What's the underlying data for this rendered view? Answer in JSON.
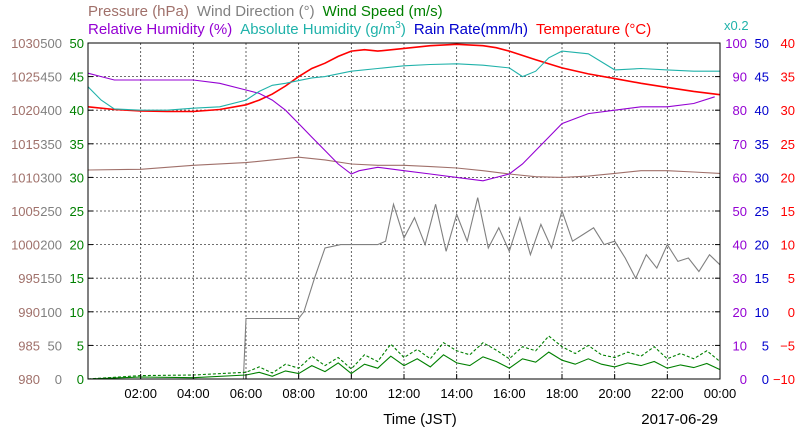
{
  "chart_data": {
    "type": "line",
    "title_row1": [
      {
        "text": "Pressure (hPa)",
        "color": "#a0706a"
      },
      {
        "text": "Wind Direction (°)",
        "color": "#808080"
      },
      {
        "text": "Wind Speed (m/s)",
        "color": "#008000"
      }
    ],
    "title_row2": [
      {
        "text": "Relative Humidity (%)",
        "color": "#9400d3"
      },
      {
        "text": "Absolute Humidity (g/m",
        "sup": "3",
        "tail": ")",
        "color": "#20b2aa"
      },
      {
        "text": "Rain Rate(mm/h)",
        "color": "#0000cd"
      },
      {
        "text": "Temperature (°C)",
        "color": "#ff0000"
      }
    ],
    "rain_scale_note": "x0.2",
    "xlabel": "Time (JST)",
    "date": "2017-06-29",
    "x_ticks": [
      "02:00",
      "04:00",
      "06:00",
      "08:00",
      "10:00",
      "12:00",
      "14:00",
      "16:00",
      "18:00",
      "20:00",
      "22:00",
      "00:00"
    ],
    "x_range_hours": [
      0,
      24
    ],
    "axes": {
      "pressure": {
        "color": "#a0706a",
        "range": [
          980,
          1030
        ],
        "ticks": [
          "980",
          "985",
          "990",
          "995",
          "1000",
          "1005",
          "1010",
          "1015",
          "1020",
          "1025",
          "1030"
        ]
      },
      "wind_direction": {
        "color": "#808080",
        "range": [
          0,
          500
        ],
        "ticks": [
          "0",
          "50",
          "100",
          "150",
          "200",
          "250",
          "300",
          "350",
          "400",
          "450",
          "500"
        ]
      },
      "wind_speed": {
        "color": "#008000",
        "range": [
          0,
          50
        ],
        "ticks": [
          "0",
          "5",
          "10",
          "15",
          "20",
          "25",
          "30",
          "35",
          "40",
          "45",
          "50"
        ]
      },
      "humidity": {
        "color": "#9400d3",
        "range": [
          0,
          100
        ],
        "ticks": [
          "0",
          "10",
          "20",
          "30",
          "40",
          "50",
          "60",
          "70",
          "80",
          "90",
          "100"
        ]
      },
      "rain_rate": {
        "color": "#0000cd",
        "range": [
          0,
          50
        ],
        "ticks": [
          "0",
          "5",
          "10",
          "15",
          "20",
          "25",
          "30",
          "35",
          "40",
          "45",
          "50"
        ]
      },
      "temperature": {
        "color": "#ff0000",
        "range": [
          -10,
          40
        ],
        "ticks": [
          "−10",
          "−5",
          "0",
          "5",
          "10",
          "15",
          "20",
          "25",
          "30",
          "35",
          "40"
        ]
      }
    },
    "series": [
      {
        "name": "Temperature",
        "axis": "temperature",
        "color": "#ff0000",
        "x": [
          0,
          1,
          2,
          3,
          4,
          5,
          6,
          6.5,
          7,
          7.5,
          8,
          8.5,
          9,
          9.5,
          10,
          10.5,
          11,
          12,
          13,
          14,
          15,
          15.5,
          16,
          17,
          18,
          19,
          20,
          21,
          22,
          23,
          24
        ],
        "y": [
          30.5,
          30.1,
          29.9,
          29.8,
          29.8,
          30.1,
          30.8,
          31.5,
          32.4,
          33.6,
          35.0,
          36.2,
          37.0,
          38.0,
          38.8,
          39.0,
          38.8,
          39.2,
          39.6,
          39.8,
          39.6,
          39.3,
          38.8,
          37.5,
          36.3,
          35.4,
          34.7,
          34.0,
          33.4,
          32.8,
          32.3
        ]
      },
      {
        "name": "Pressure",
        "axis": "pressure",
        "color": "#a0706a",
        "x": [
          0,
          2,
          4,
          6,
          7,
          8,
          9,
          10,
          11,
          12,
          13,
          14,
          15,
          16,
          17,
          18,
          19,
          20,
          21,
          22,
          23,
          24
        ],
        "y": [
          1011.1,
          1011.2,
          1011.8,
          1012.2,
          1012.6,
          1013.0,
          1012.6,
          1012.0,
          1011.8,
          1011.8,
          1011.6,
          1011.4,
          1011.0,
          1010.5,
          1010.1,
          1010.0,
          1010.2,
          1010.6,
          1011.0,
          1011.0,
          1010.8,
          1010.6
        ]
      },
      {
        "name": "Relative Humidity",
        "axis": "humidity",
        "color": "#9400d3",
        "x": [
          0,
          0.5,
          1,
          2,
          3,
          4,
          5,
          6,
          6.5,
          7,
          7.5,
          8,
          8.5,
          9,
          9.5,
          10,
          10.3,
          11,
          12,
          13,
          14,
          15,
          15.5,
          16,
          16.5,
          17,
          17.5,
          18,
          19,
          20,
          21,
          22,
          23,
          23.8
        ],
        "y": [
          91,
          90,
          89,
          89,
          89,
          89,
          88,
          86,
          85,
          83,
          80,
          76,
          72,
          68,
          64,
          61,
          62,
          63,
          62,
          61,
          60,
          59,
          60,
          61,
          64,
          68,
          72,
          76,
          79,
          80,
          81,
          81,
          82,
          84
        ]
      },
      {
        "name": "Absolute Humidity",
        "axis": "wind_speed",
        "color": "#20b2aa",
        "x": [
          0,
          0.5,
          1,
          2,
          3,
          4,
          5,
          6,
          6.5,
          7,
          7.5,
          8,
          8.5,
          9,
          10,
          11,
          12,
          13,
          14,
          15,
          16,
          16.5,
          17,
          17.5,
          18,
          19,
          20,
          21,
          22,
          23,
          24
        ],
        "y": [
          43.5,
          41.5,
          40.2,
          40.0,
          40.0,
          40.3,
          40.5,
          41.5,
          42.8,
          43.7,
          44.0,
          44.4,
          44.8,
          45.0,
          45.8,
          46.2,
          46.6,
          46.8,
          46.9,
          46.7,
          46.3,
          45.0,
          45.8,
          47.8,
          48.8,
          48.4,
          46.0,
          46.2,
          46.0,
          45.8,
          45.8
        ]
      },
      {
        "name": "Wind Direction",
        "axis": "wind_direction",
        "color": "#808080",
        "x": [
          0,
          5.9,
          6.0,
          7,
          8,
          8.2,
          8.6,
          9,
          9.6,
          10,
          10.5,
          11,
          11.3,
          11.6,
          12,
          12.4,
          12.8,
          13.2,
          13.6,
          14,
          14.4,
          14.8,
          15.2,
          15.6,
          16,
          16.4,
          16.8,
          17.2,
          17.6,
          18,
          18.4,
          18.8,
          19.2,
          19.6,
          20,
          20.4,
          20.8,
          21.2,
          21.6,
          22,
          22.4,
          22.8,
          23.2,
          23.6,
          24
        ],
        "y": [
          0,
          0,
          90,
          90,
          90,
          100,
          150,
          195,
          200,
          200,
          200,
          200,
          205,
          260,
          210,
          240,
          200,
          260,
          190,
          245,
          205,
          270,
          195,
          225,
          190,
          240,
          185,
          230,
          195,
          250,
          205,
          215,
          225,
          200,
          205,
          180,
          150,
          185,
          165,
          200,
          175,
          180,
          160,
          185,
          170
        ]
      },
      {
        "name": "Wind Speed",
        "axis": "wind_speed",
        "color": "#008000",
        "x": [
          0,
          2,
          4,
          6,
          6.5,
          7,
          7.5,
          8,
          8.5,
          9,
          9.5,
          10,
          10.5,
          11,
          11.5,
          12,
          12.5,
          13,
          13.5,
          14,
          14.5,
          15,
          15.5,
          16,
          16.5,
          17,
          17.5,
          18,
          18.5,
          19,
          19.5,
          20,
          20.5,
          21,
          21.5,
          22,
          22.5,
          23,
          23.5,
          24
        ],
        "y": [
          0,
          0.3,
          0.2,
          0.6,
          1.0,
          0.4,
          1.2,
          0.8,
          2.0,
          1.1,
          2.4,
          0.8,
          2.2,
          1.6,
          3.4,
          2.0,
          3.0,
          1.8,
          3.6,
          2.4,
          2.0,
          3.3,
          2.6,
          1.6,
          3.0,
          2.5,
          4.0,
          2.8,
          2.2,
          3.0,
          2.2,
          1.8,
          2.4,
          2.0,
          2.6,
          1.6,
          2.1,
          1.7,
          2.3,
          1.4
        ]
      },
      {
        "name": "Wind Speed gust",
        "axis": "wind_speed",
        "color": "#008000",
        "dashed": true,
        "x": [
          0,
          2,
          4,
          6,
          6.5,
          7,
          7.5,
          8,
          8.5,
          9,
          9.5,
          10,
          10.5,
          11,
          11.5,
          12,
          12.5,
          13,
          13.5,
          14,
          14.5,
          15,
          15.5,
          16,
          16.5,
          17,
          17.5,
          18,
          18.5,
          19,
          19.5,
          20,
          20.5,
          21,
          21.5,
          22,
          22.5,
          23,
          23.5,
          24
        ],
        "y": [
          0,
          0.5,
          0.6,
          1.0,
          1.8,
          0.9,
          2.2,
          1.6,
          3.4,
          2.0,
          3.2,
          1.5,
          3.6,
          2.6,
          5.2,
          3.2,
          4.4,
          3.0,
          5.4,
          4.2,
          3.6,
          5.4,
          4.3,
          3.0,
          4.8,
          4.2,
          6.4,
          4.8,
          3.8,
          5.0,
          3.6,
          3.2,
          4.0,
          3.4,
          4.8,
          3.0,
          3.8,
          3.0,
          4.2,
          2.6
        ]
      },
      {
        "name": "Rain Rate",
        "axis": "rain_rate",
        "color": "#0000cd",
        "x": [
          0,
          24
        ],
        "y": [
          0,
          0
        ]
      }
    ]
  }
}
